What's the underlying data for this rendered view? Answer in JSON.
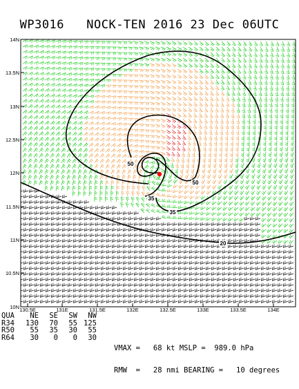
{
  "title": {
    "storm_id": "WP3016",
    "storm_name": "NOCK-TEN",
    "date": "2016 23 Dec 06UTC"
  },
  "axes": {
    "x_ticks": [
      "130.5E",
      "131E",
      "131.5E",
      "132E",
      "132.5E",
      "133E",
      "133.5E",
      "134E"
    ],
    "y_ticks": [
      "14N",
      "13.5N",
      "13N",
      "12.5N",
      "12N",
      "11.5N",
      "11N",
      "10.5N",
      "10N"
    ]
  },
  "contours": {
    "labels": [
      "50",
      "50",
      "35",
      "35",
      "20"
    ]
  },
  "wind_radii": {
    "headers": [
      "QUA",
      "NE",
      "SE",
      "SW",
      "NW"
    ],
    "rows": [
      [
        "R34",
        "130",
        "70",
        "55",
        "125"
      ],
      [
        "R50",
        "55",
        "35",
        "30",
        "55"
      ],
      [
        "R64",
        "30",
        "0",
        "0",
        "30"
      ]
    ]
  },
  "stats": {
    "line1": "VMAX =   68 kt MSLP =  989.0 hPa",
    "line2": "RMW  =   28 nmi BEARING =   10 degrees"
  },
  "colors": {
    "barb_green": "#22cc22",
    "barb_orange": "#f0a050",
    "barb_red": "#e03030",
    "barb_black": "#000000",
    "center_marker": "#ff0000"
  }
}
